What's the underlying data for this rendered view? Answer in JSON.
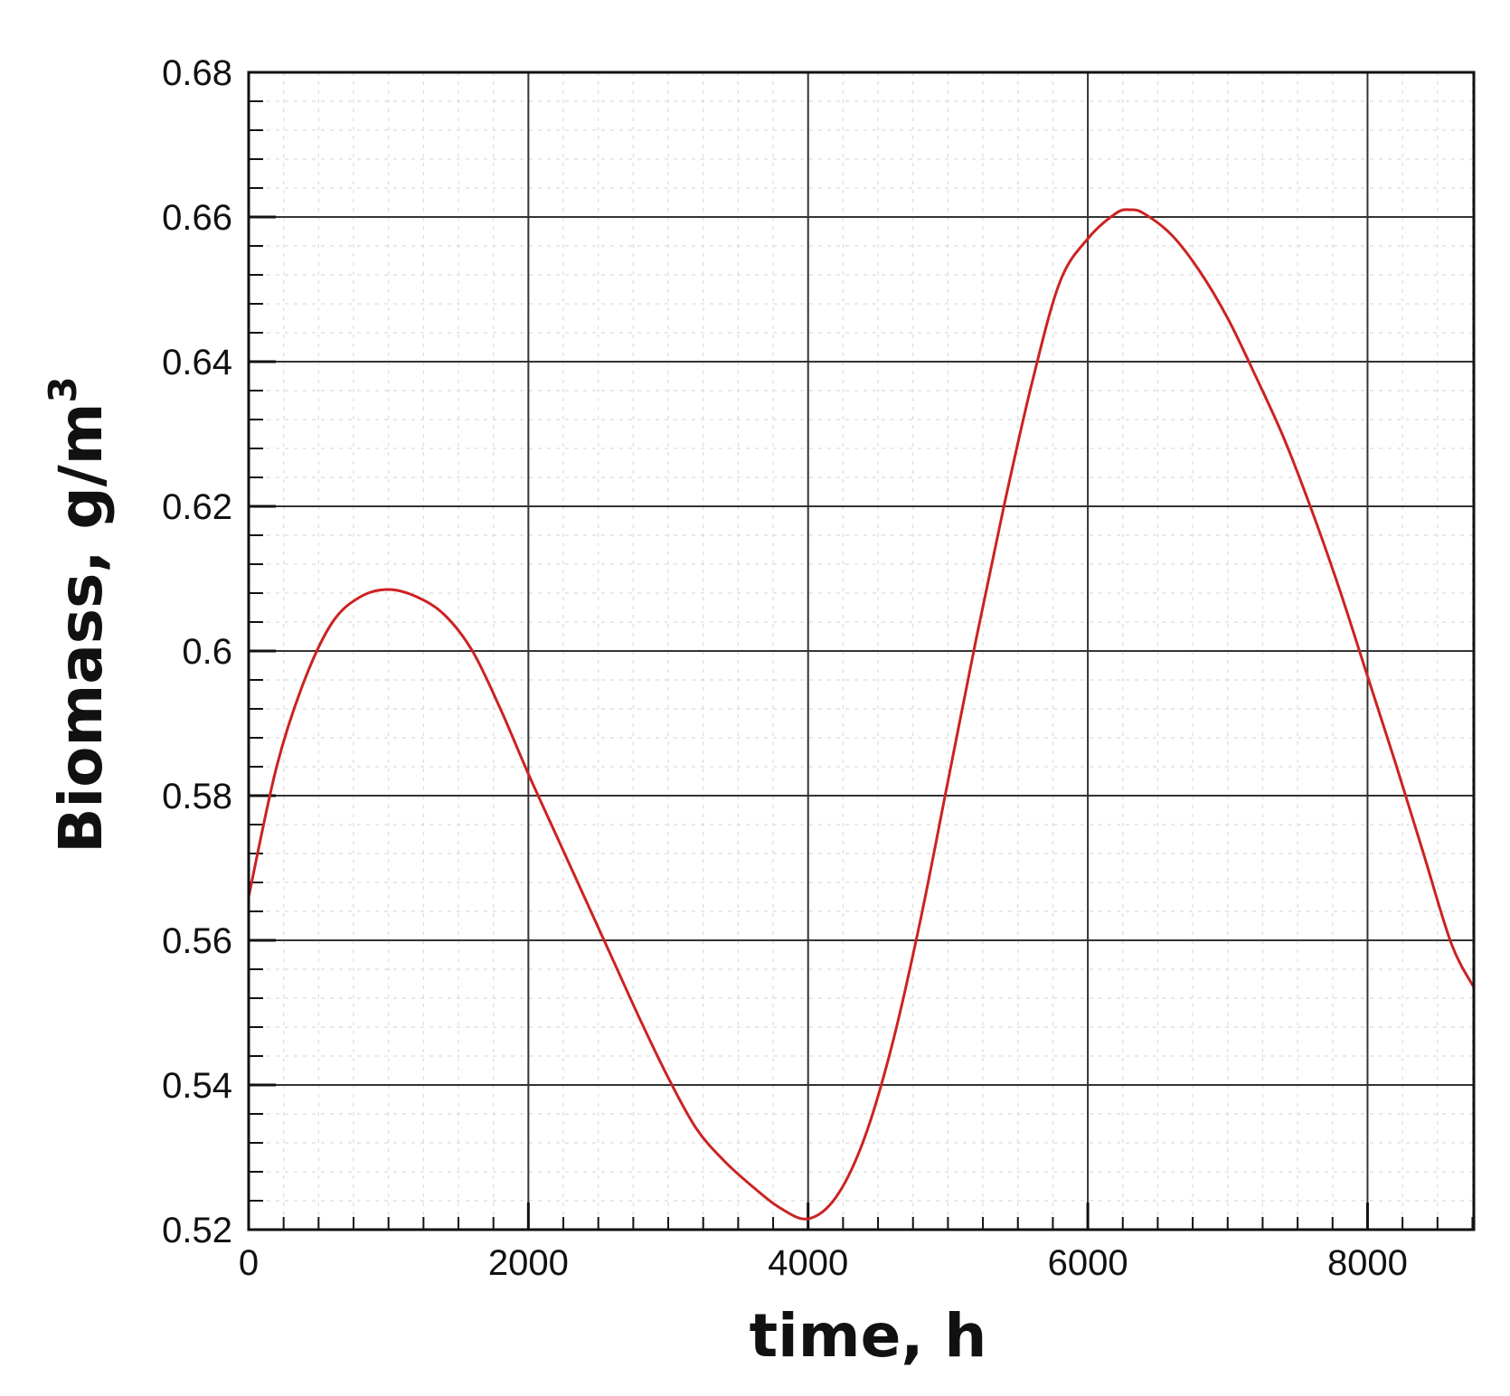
{
  "chart_data": {
    "type": "line",
    "xlabel": "time, h",
    "ylabel": {
      "text": "Biomass, g/m",
      "superscript": "3"
    },
    "xlim": [
      0,
      8760
    ],
    "ylim": [
      0.52,
      0.68
    ],
    "x_ticks": [
      0,
      2000,
      4000,
      6000,
      8000
    ],
    "x_tick_labels": [
      "0",
      "2000",
      "4000",
      "6000",
      "8000"
    ],
    "y_ticks": [
      0.52,
      0.54,
      0.56,
      0.58,
      0.6,
      0.62,
      0.64,
      0.66,
      0.68
    ],
    "y_tick_labels": [
      "0.52",
      "0.54",
      "0.56",
      "0.58",
      "0.6",
      "0.62",
      "0.64",
      "0.66",
      "0.68"
    ],
    "grid": true,
    "legend": "none",
    "series": [
      {
        "color": "#cc2222",
        "x": [
          0,
          200,
          400,
          600,
          800,
          1000,
          1200,
          1400,
          1600,
          1800,
          2000,
          2200,
          2400,
          2600,
          2800,
          3000,
          3200,
          3400,
          3600,
          3800,
          4000,
          4200,
          4400,
          4600,
          4800,
          5000,
          5200,
          5400,
          5600,
          5800,
          6000,
          6200,
          6300,
          6400,
          6600,
          6800,
          7000,
          7200,
          7400,
          7600,
          7800,
          8000,
          8200,
          8400,
          8600,
          8760
        ],
        "values": [
          0.566,
          0.584,
          0.596,
          0.604,
          0.6075,
          0.6085,
          0.6075,
          0.605,
          0.6,
          0.592,
          0.583,
          0.5745,
          0.566,
          0.5575,
          0.549,
          0.541,
          0.534,
          0.5295,
          0.526,
          0.523,
          0.5215,
          0.5245,
          0.5325,
          0.5455,
          0.5625,
          0.582,
          0.6015,
          0.62,
          0.637,
          0.651,
          0.657,
          0.6605,
          0.661,
          0.6605,
          0.6575,
          0.6525,
          0.646,
          0.638,
          0.6295,
          0.6195,
          0.6085,
          0.5965,
          0.5845,
          0.572,
          0.5595,
          0.5535
        ]
      }
    ]
  }
}
